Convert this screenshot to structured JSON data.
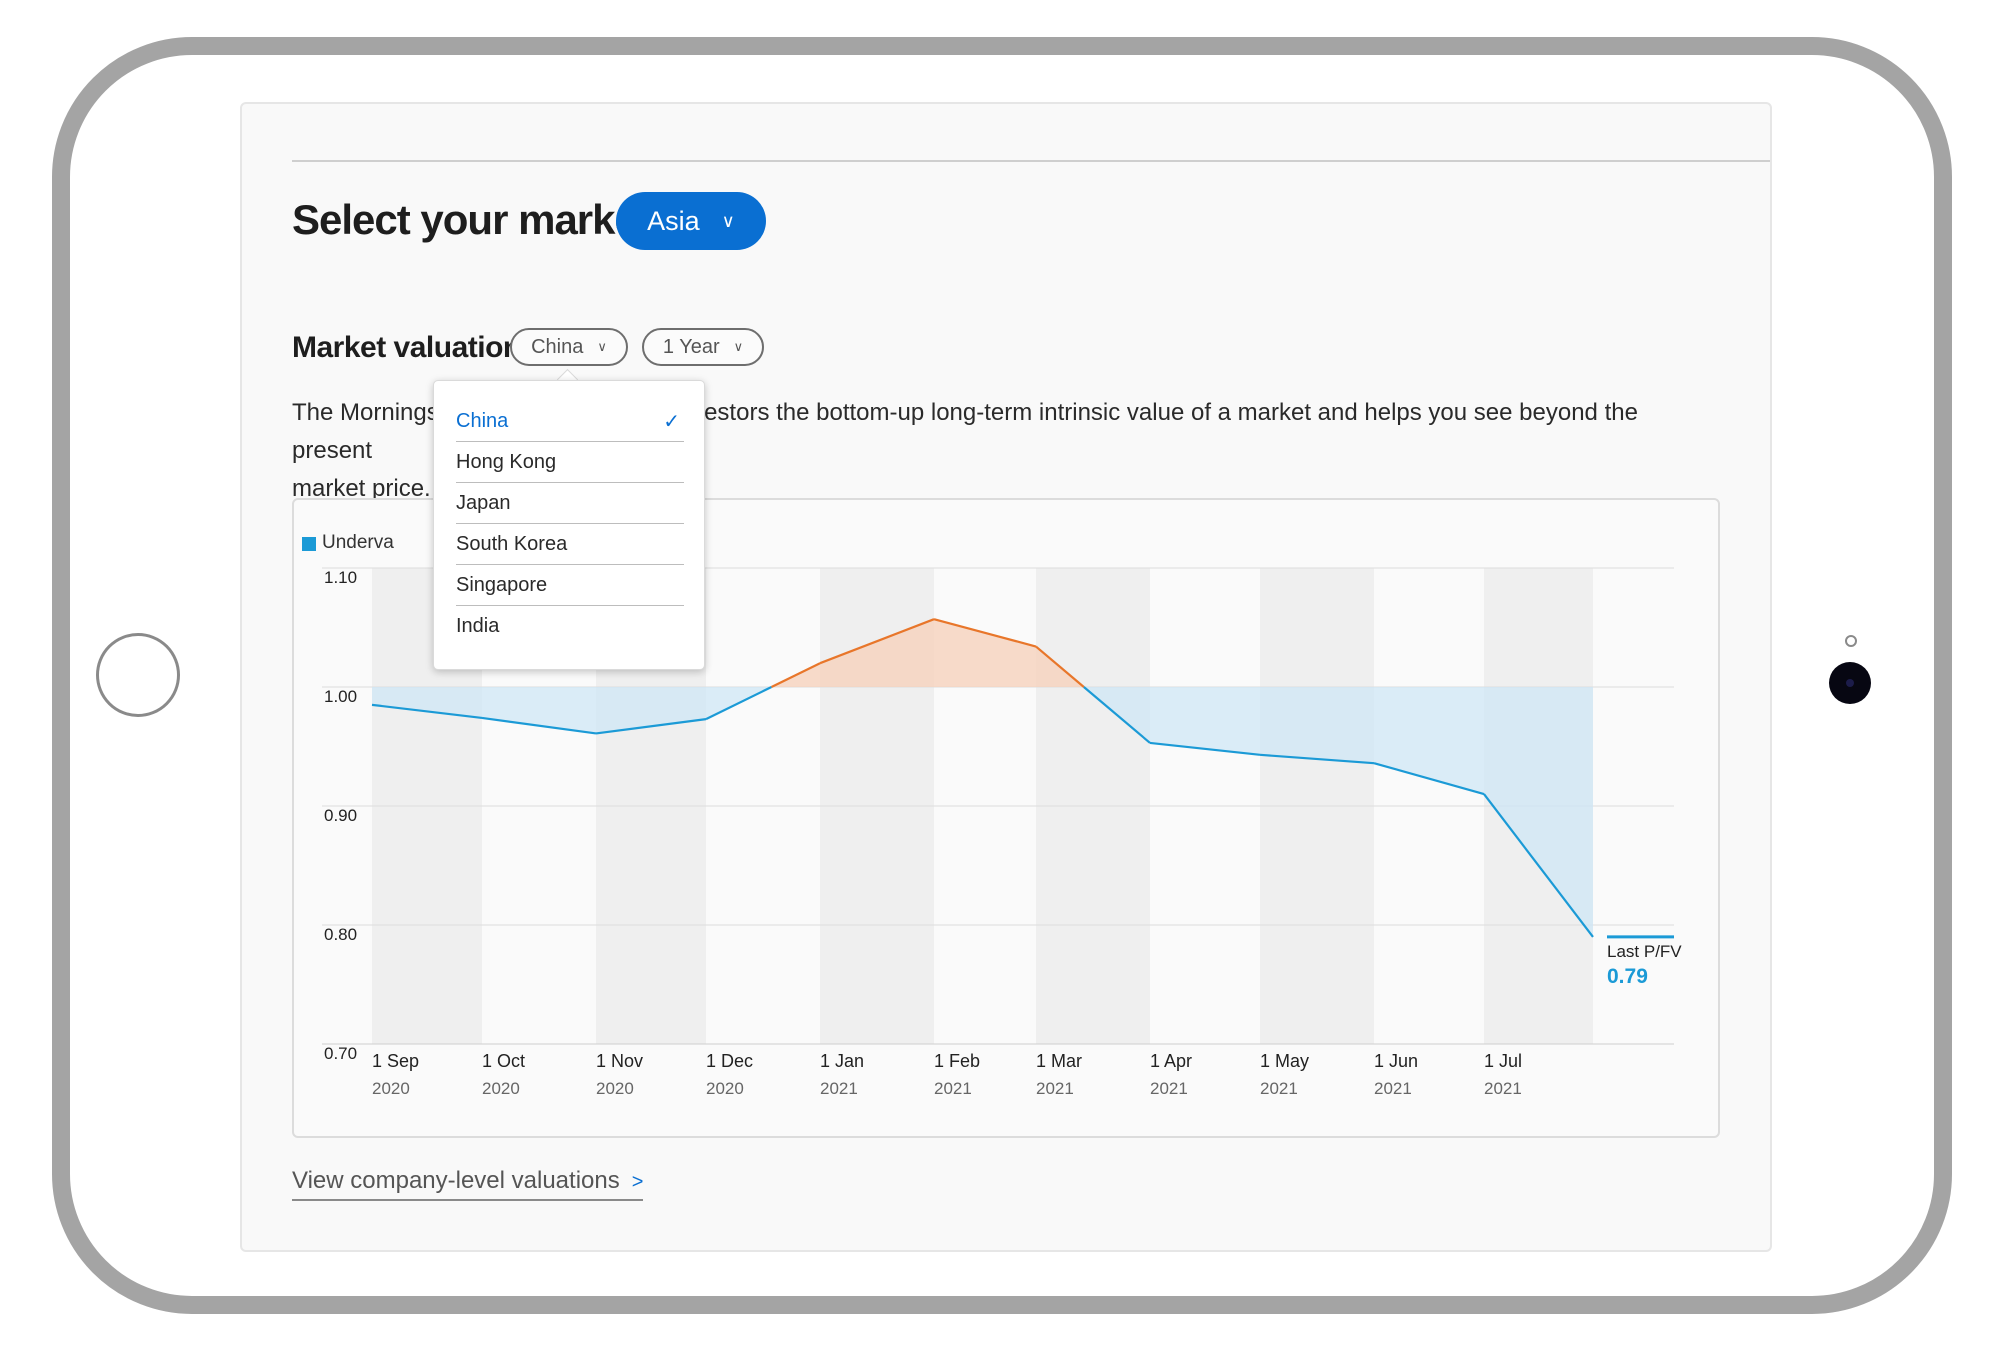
{
  "header": {
    "title": "Select your market",
    "region": "Asia"
  },
  "valuation": {
    "title": "Market valuation",
    "country": "China",
    "period": "1 Year",
    "description_left": "The Morningst",
    "description_right": "investors the bottom-up long-term intrinsic value of a market and helps you see beyond the present",
    "description_line2": "market price."
  },
  "dropdown": {
    "items": [
      {
        "label": "China",
        "selected": true
      },
      {
        "label": "Hong Kong",
        "selected": false
      },
      {
        "label": "Japan",
        "selected": false
      },
      {
        "label": "South Korea",
        "selected": false
      },
      {
        "label": "Singapore",
        "selected": false
      },
      {
        "label": "India",
        "selected": false
      }
    ]
  },
  "chart_data": {
    "type": "area",
    "title": "",
    "legend": [
      "Underva"
    ],
    "x": [
      "1 Sep 2020",
      "1 Oct 2020",
      "1 Nov 2020",
      "1 Dec 2020",
      "1 Jan 2021",
      "1 Feb 2021",
      "1 Mar 2021",
      "1 Apr 2021",
      "1 May 2021",
      "1 Jun 2021",
      "1 Jul 2021",
      "Last"
    ],
    "tick_labels": [
      {
        "day": "1 Sep",
        "year": "2020"
      },
      {
        "day": "1 Oct",
        "year": "2020"
      },
      {
        "day": "1 Nov",
        "year": "2020"
      },
      {
        "day": "1 Dec",
        "year": "2020"
      },
      {
        "day": "1 Jan",
        "year": "2021"
      },
      {
        "day": "1 Feb",
        "year": "2021"
      },
      {
        "day": "1 Mar",
        "year": "2021"
      },
      {
        "day": "1 Apr",
        "year": "2021"
      },
      {
        "day": "1 May",
        "year": "2021"
      },
      {
        "day": "1 Jun",
        "year": "2021"
      },
      {
        "day": "1 Jul",
        "year": "2021"
      }
    ],
    "values": [
      0.985,
      0.974,
      0.961,
      0.973,
      1.02,
      1.057,
      1.034,
      0.953,
      0.943,
      0.936,
      0.91,
      0.79
    ],
    "baseline": 1.0,
    "y_ticks": [
      "1.10",
      "1.00",
      "0.90",
      "0.80",
      "0.70"
    ],
    "ylim": [
      0.7,
      1.1
    ],
    "last_label": "Last P/FV",
    "last_value": "0.79",
    "colors": {
      "under": "#1b9ad6",
      "over": "#e8762a",
      "under_fill": "#cfe7f5",
      "over_fill": "#f6d2bd"
    }
  },
  "footer": {
    "link": "View company-level valuations",
    "arrow": ">"
  }
}
